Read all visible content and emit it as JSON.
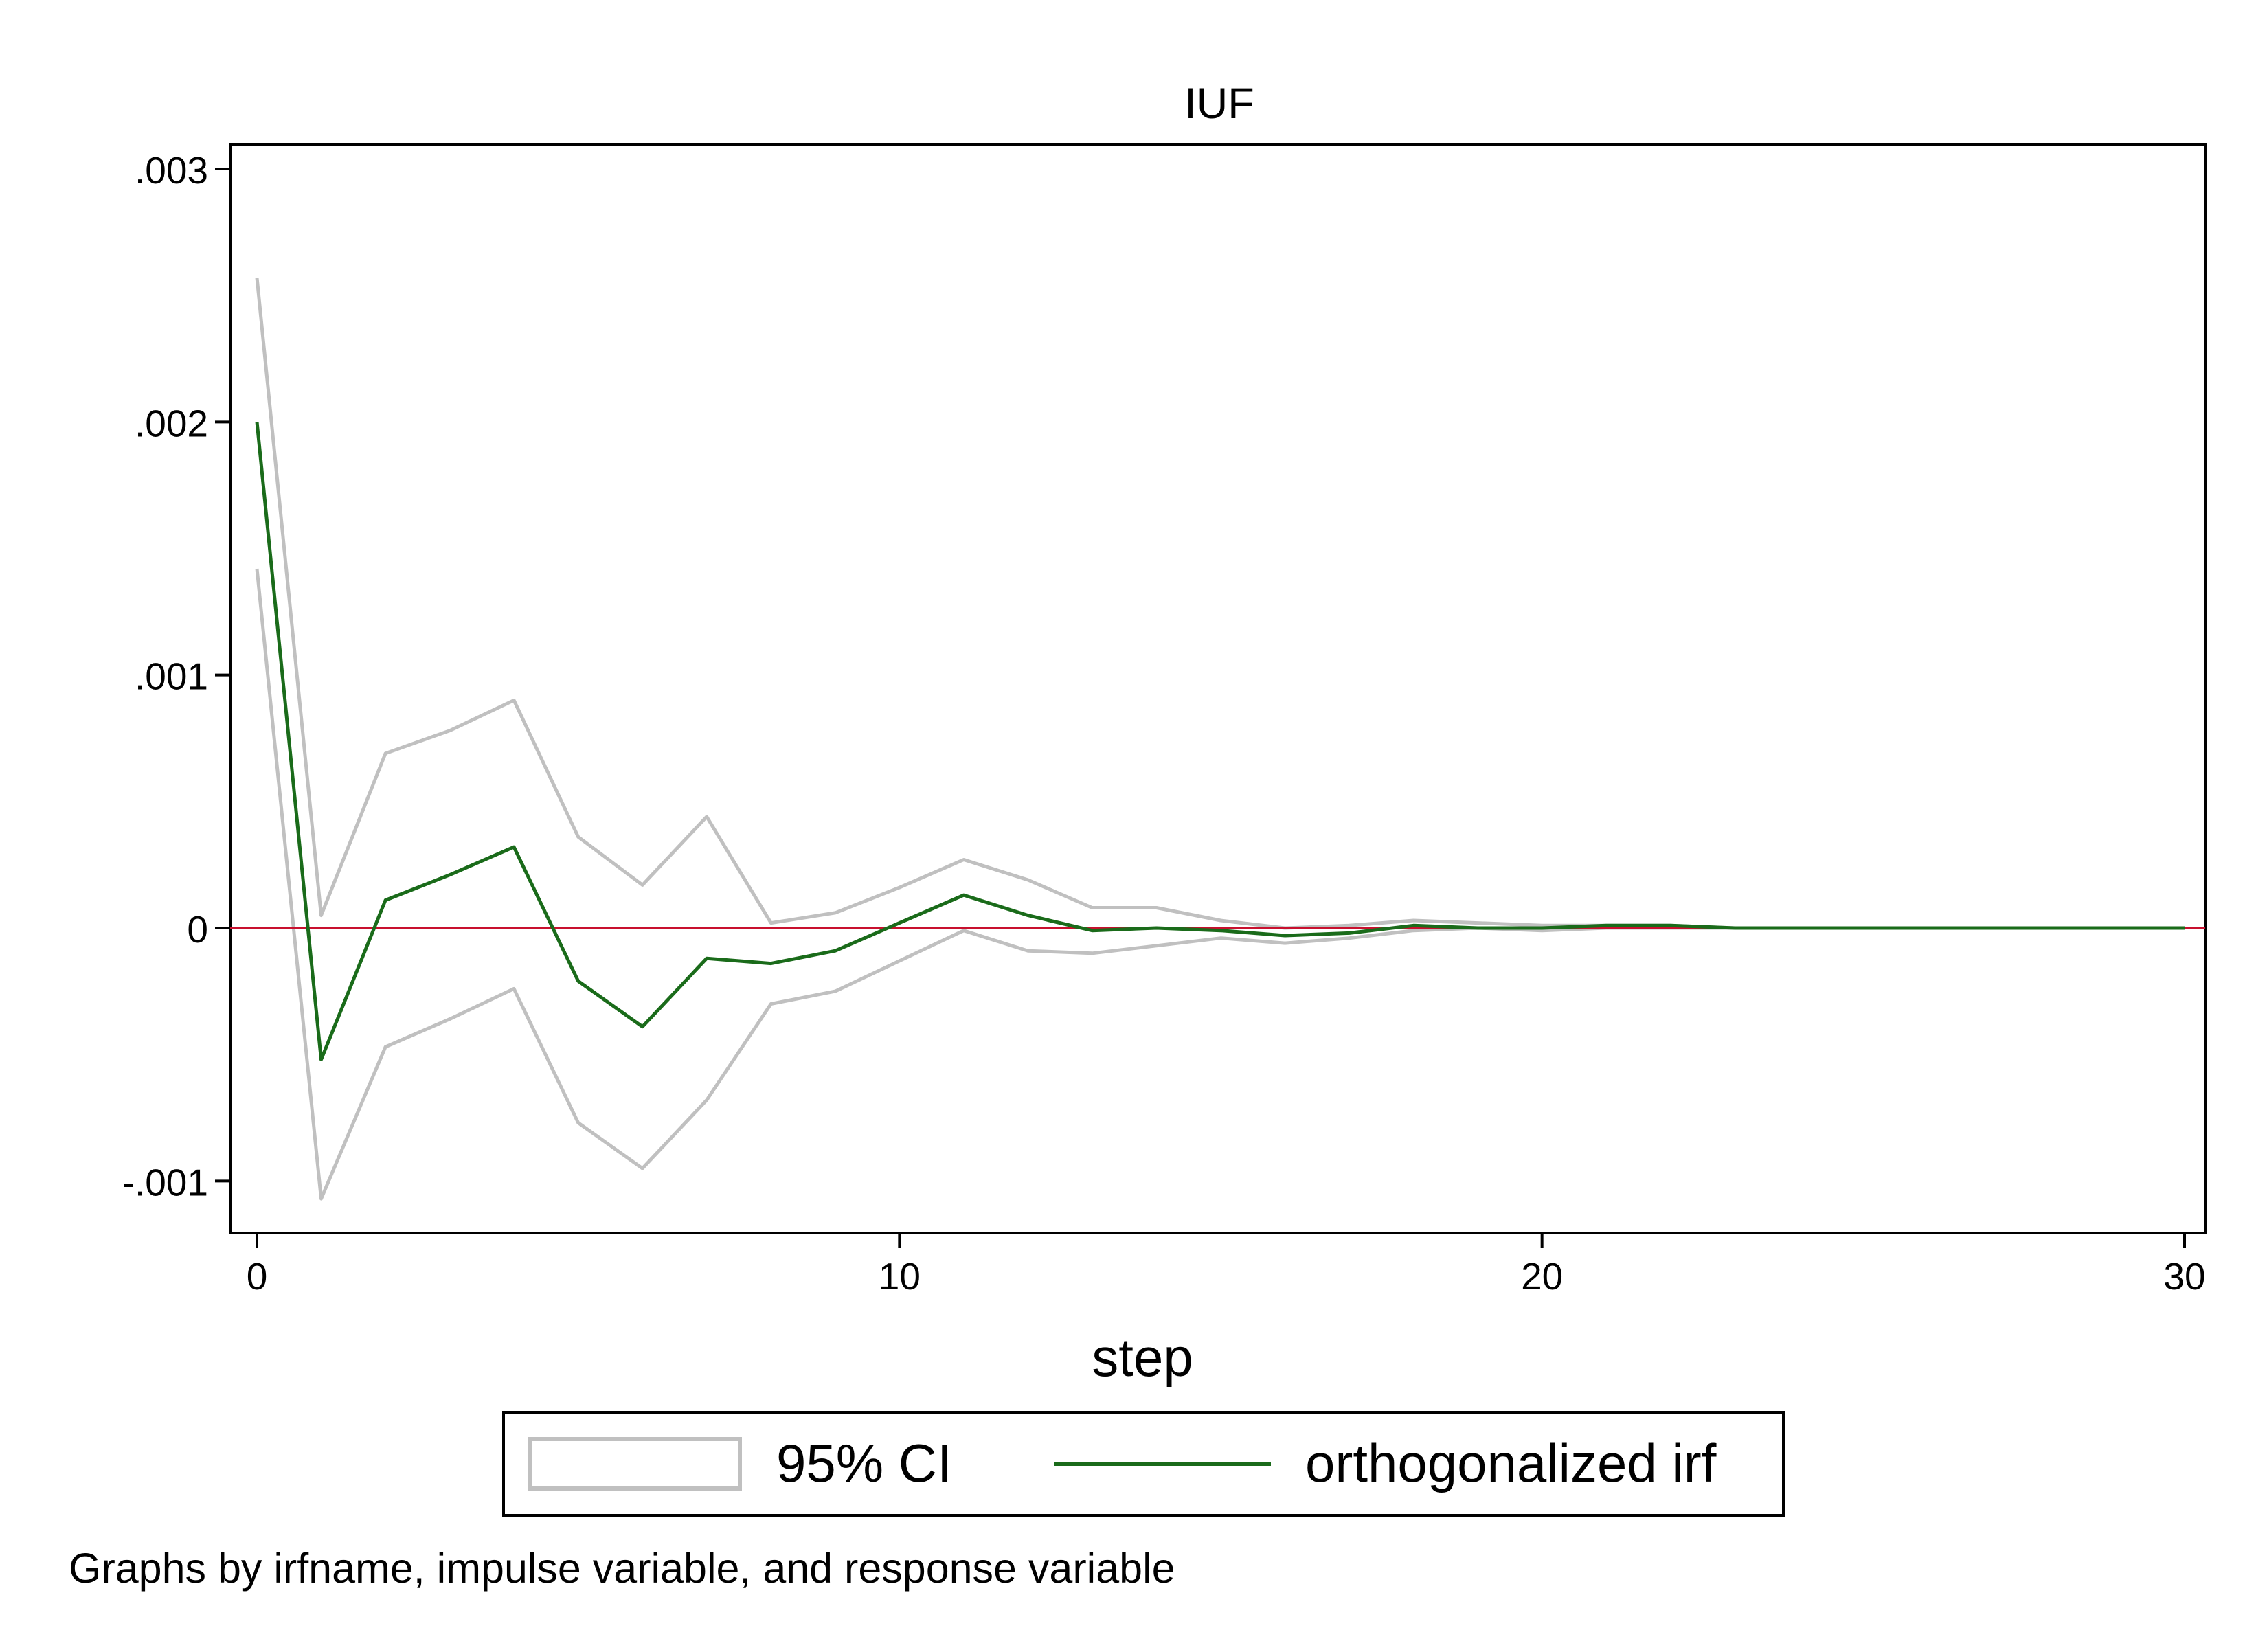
{
  "chart_data": {
    "type": "line",
    "title": "IUF",
    "xlabel": "step",
    "ylabel": "",
    "xlim": [
      0,
      30
    ],
    "ylim": [
      -0.00121,
      0.003
    ],
    "x_ticks": [
      {
        "value": 0,
        "label": "0"
      },
      {
        "value": 10,
        "label": "10"
      },
      {
        "value": 20,
        "label": "20"
      },
      {
        "value": 30,
        "label": "30"
      }
    ],
    "y_ticks": [
      {
        "value": 0.003,
        "label": ".003"
      },
      {
        "value": 0.002,
        "label": ".002"
      },
      {
        "value": 0.001,
        "label": ".001"
      },
      {
        "value": 0,
        "label": "0"
      },
      {
        "value": -0.001,
        "label": "-.001"
      }
    ],
    "x": [
      0,
      1,
      2,
      3,
      4,
      5,
      6,
      7,
      8,
      9,
      10,
      11,
      12,
      13,
      14,
      15,
      16,
      17,
      18,
      19,
      20,
      21,
      22,
      23,
      24,
      25,
      26,
      27,
      28,
      29,
      30
    ],
    "series": [
      {
        "name": "orthogonalized irf",
        "color": "#1a6b1a",
        "values": [
          0.002,
          -0.00052,
          0.00011,
          0.00021,
          0.00032,
          -0.00021,
          -0.00039,
          -0.00012,
          -0.00014,
          -9e-05,
          2e-05,
          0.00013,
          5e-05,
          -1e-05,
          0.0,
          -1e-05,
          -3e-05,
          -2e-05,
          1e-05,
          0.0,
          0.0,
          1e-05,
          1e-05,
          0.0,
          0.0,
          0.0,
          0.0,
          0.0,
          0.0,
          0.0,
          0.0
        ]
      },
      {
        "name": "95% CI",
        "color": "#c0c0c0",
        "lower": [
          0.00142,
          -0.00107,
          -0.00047,
          -0.00036,
          -0.00024,
          -0.00077,
          -0.00095,
          -0.00068,
          -0.0003,
          -0.00025,
          -0.00013,
          -1e-05,
          -9e-05,
          -0.0001,
          -7e-05,
          -4e-05,
          -6e-05,
          -4e-05,
          -1e-05,
          0.0,
          -1e-05,
          0.0,
          0.0,
          0.0,
          0.0,
          0.0,
          0.0,
          0.0,
          0.0,
          0.0,
          0.0
        ],
        "upper": [
          0.00257,
          5e-05,
          0.00069,
          0.00078,
          0.0009,
          0.00036,
          0.00017,
          0.00044,
          2e-05,
          6e-05,
          0.00016,
          0.00027,
          0.00019,
          8e-05,
          8e-05,
          3e-05,
          0.0,
          1e-05,
          3e-05,
          2e-05,
          1e-05,
          1e-05,
          1e-05,
          0.0,
          0.0,
          0.0,
          0.0,
          0.0,
          0.0,
          0.0,
          0.0
        ]
      }
    ],
    "reference_line": {
      "y": 0,
      "color": "#c8102e"
    },
    "legend": {
      "placement": "bottom",
      "entries": [
        {
          "label": "95% CI",
          "kind": "area-outline",
          "color": "#c0c0c0"
        },
        {
          "label": "orthogonalized irf",
          "kind": "line",
          "color": "#1a6b1a"
        }
      ]
    },
    "grid": false
  },
  "note": "Graphs by irfname, impulse variable, and response variable"
}
